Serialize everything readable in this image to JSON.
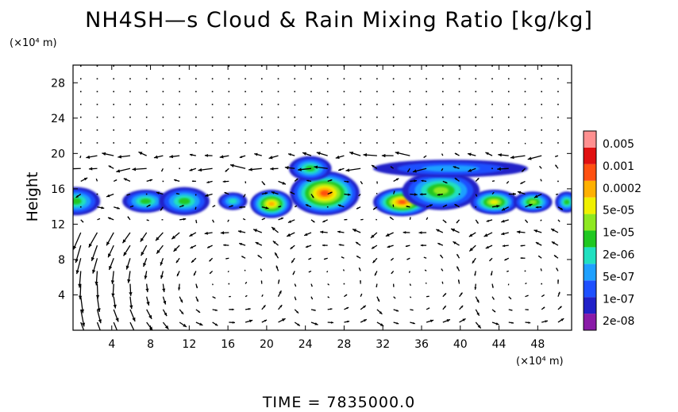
{
  "header": {
    "title": "NH4SH—s Cloud & Rain Mixing Ratio [kg/kg]"
  },
  "footer": {
    "time_text": "TIME  =  7835000.0"
  },
  "chart_data": {
    "type": "heatmap",
    "title": "NH4SH—s Cloud & Rain Mixing Ratio [kg/kg]",
    "xlabel": "",
    "ylabel": "Height",
    "x_unit_label": "(×10⁴ m)",
    "y_unit_label": "(×10⁴ m)",
    "xlim": [
      0,
      51.5
    ],
    "ylim": [
      0,
      30
    ],
    "x_ticks": [
      4,
      8,
      12,
      16,
      20,
      24,
      28,
      32,
      36,
      40,
      44,
      48
    ],
    "y_ticks": [
      4,
      8,
      12,
      16,
      20,
      24,
      28
    ],
    "colorbar": {
      "labels": [
        "0.005",
        "0.001",
        "0.0002",
        "5e-05",
        "1e-05",
        "2e-06",
        "5e-07",
        "1e-07",
        "2e-08"
      ],
      "colors": [
        "#8a1aa8",
        "#2020c8",
        "#1e50ff",
        "#1ea0ff",
        "#20e0c0",
        "#20c820",
        "#8ee820",
        "#f0f000",
        "#ffb000",
        "#ff5010",
        "#e01010",
        "#ff9090"
      ]
    },
    "cloud_regions": [
      {
        "x": 0.3,
        "y": 14.6,
        "rx": 2.5,
        "ry": 1.6,
        "level": 4
      },
      {
        "x": 7.5,
        "y": 14.6,
        "rx": 2.4,
        "ry": 1.3,
        "level": 4
      },
      {
        "x": 11.5,
        "y": 14.6,
        "rx": 2.6,
        "ry": 1.6,
        "level": 4
      },
      {
        "x": 16.5,
        "y": 14.6,
        "rx": 1.5,
        "ry": 1.0,
        "level": 3
      },
      {
        "x": 20.5,
        "y": 14.3,
        "rx": 2.2,
        "ry": 1.6,
        "level": 7
      },
      {
        "x": 26.0,
        "y": 15.5,
        "rx": 3.6,
        "ry": 2.5,
        "level": 8
      },
      {
        "x": 24.5,
        "y": 18.3,
        "rx": 2.2,
        "ry": 1.4,
        "level": 4
      },
      {
        "x": 34.0,
        "y": 14.5,
        "rx": 3.0,
        "ry": 1.6,
        "level": 8
      },
      {
        "x": 38.0,
        "y": 15.8,
        "rx": 4.0,
        "ry": 2.2,
        "level": 5
      },
      {
        "x": 39.0,
        "y": 18.3,
        "rx": 8.0,
        "ry": 1.0,
        "level": 2
      },
      {
        "x": 43.5,
        "y": 14.5,
        "rx": 2.5,
        "ry": 1.4,
        "level": 6
      },
      {
        "x": 47.5,
        "y": 14.5,
        "rx": 2.0,
        "ry": 1.2,
        "level": 5
      },
      {
        "x": 51.0,
        "y": 14.5,
        "rx": 1.2,
        "ry": 1.2,
        "level": 4
      }
    ],
    "wind_vectors": "grid of arrows; dense/large near 12-20 and in circulation cells below 12"
  }
}
